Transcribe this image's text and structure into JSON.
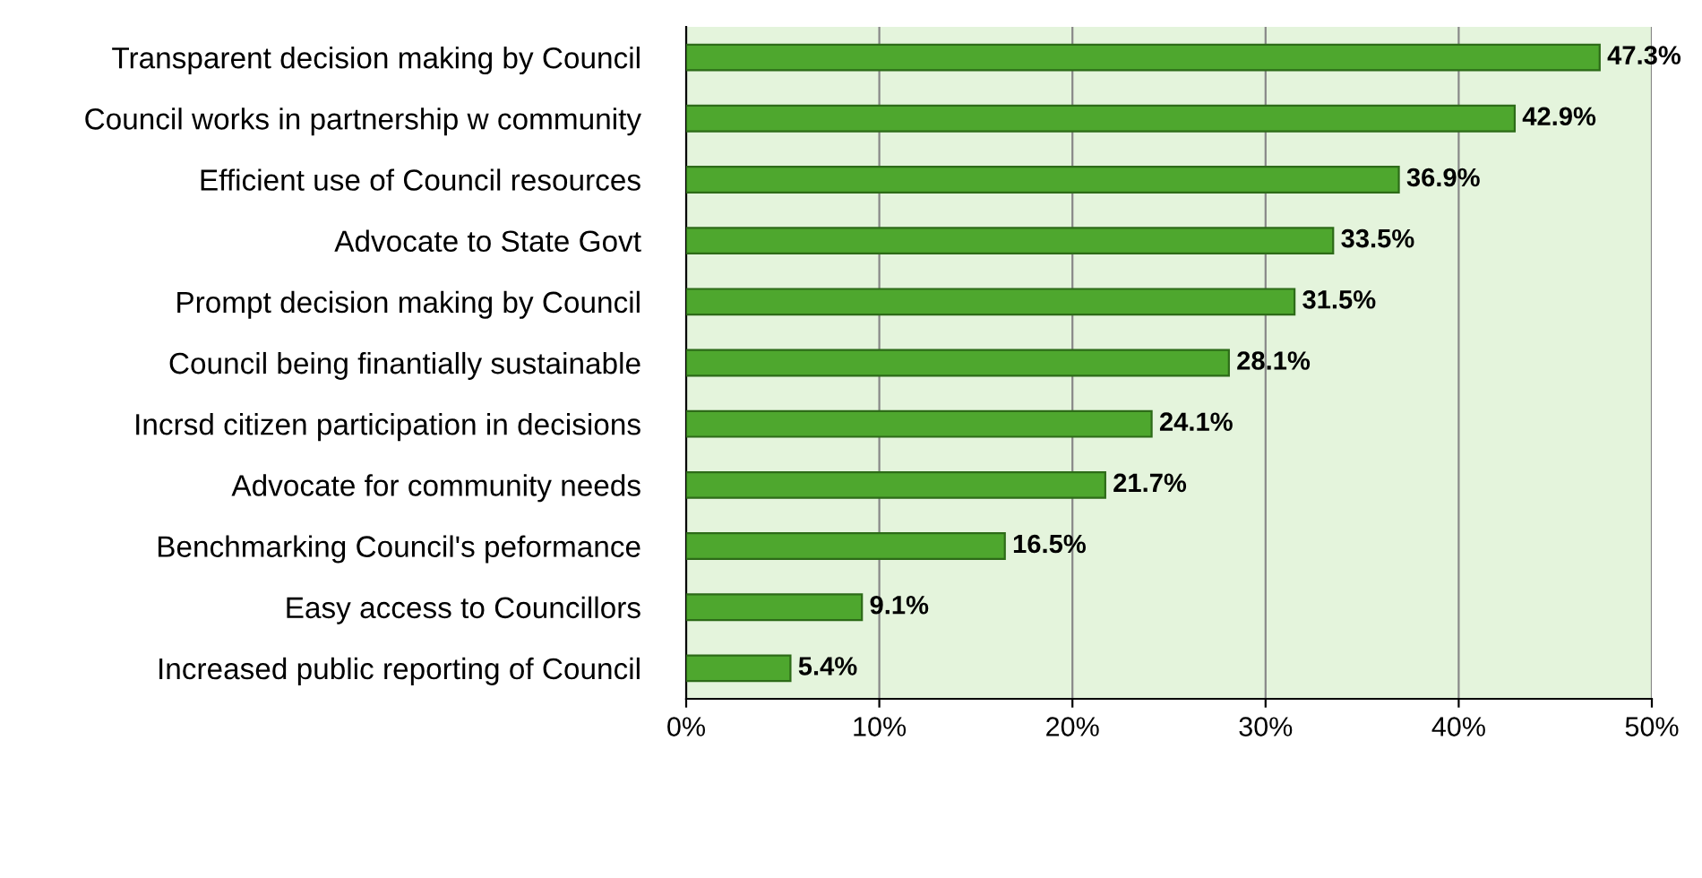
{
  "chart_data": {
    "type": "bar",
    "orientation": "horizontal",
    "categories": [
      "Transparent decision making by Council",
      "Council works in partnership w community",
      "Efficient use of Council resources",
      "Advocate to State Govt",
      "Prompt decision making by Council",
      "Council being finantially sustainable",
      "Incrsd citizen participation in decisions",
      "Advocate for community needs",
      "Benchmarking Council's peformance",
      "Easy access to Councillors",
      "Increased public reporting of Council"
    ],
    "values": [
      47.3,
      42.9,
      36.9,
      33.5,
      31.5,
      28.1,
      24.1,
      21.7,
      16.5,
      9.1,
      5.4
    ],
    "value_labels": [
      "47.3%",
      "42.9%",
      "36.9%",
      "33.5%",
      "31.5%",
      "28.1%",
      "24.1%",
      "21.7%",
      "16.5%",
      "9.1%",
      "5.4%"
    ],
    "color": "#4ea72e",
    "xlim": [
      0,
      50
    ],
    "xticks": [
      {
        "value": 0,
        "label": "0%"
      },
      {
        "value": 10,
        "label": "10%"
      },
      {
        "value": 20,
        "label": "20%"
      },
      {
        "value": 30,
        "label": "30%"
      },
      {
        "value": 40,
        "label": "40%"
      },
      {
        "value": 50,
        "label": "50%"
      }
    ],
    "grid": "x",
    "legend": false
  }
}
